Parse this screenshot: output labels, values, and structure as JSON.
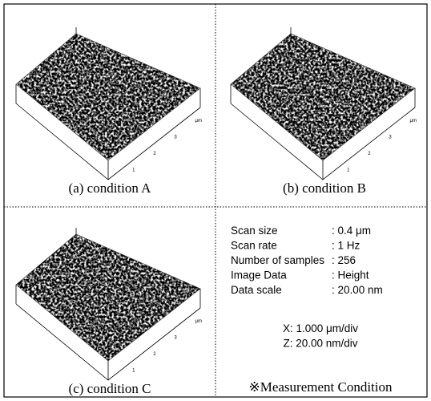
{
  "panels": [
    {
      "caption": "(a) condition A",
      "ticks": [
        "1",
        "2",
        "3",
        "μm"
      ]
    },
    {
      "caption": "(b) condition B",
      "ticks": [
        "1",
        "2",
        "3",
        "μm"
      ]
    },
    {
      "caption": "(c) condition C",
      "ticks": [
        "1",
        "2",
        "3",
        "μm"
      ]
    }
  ],
  "measurement": {
    "caption": "※Measurement Condition",
    "rows": [
      [
        "Scan size",
        ": 0.4 μm"
      ],
      [
        "Scan rate",
        ": 1 Hz"
      ],
      [
        "Number of samples",
        ": 256"
      ],
      [
        "Image Data",
        ": Height"
      ],
      [
        "Data scale",
        ": 20.00 nm"
      ]
    ],
    "scales": [
      "X: 1.000 μm/div",
      "Z: 20.00 nm/div"
    ]
  }
}
